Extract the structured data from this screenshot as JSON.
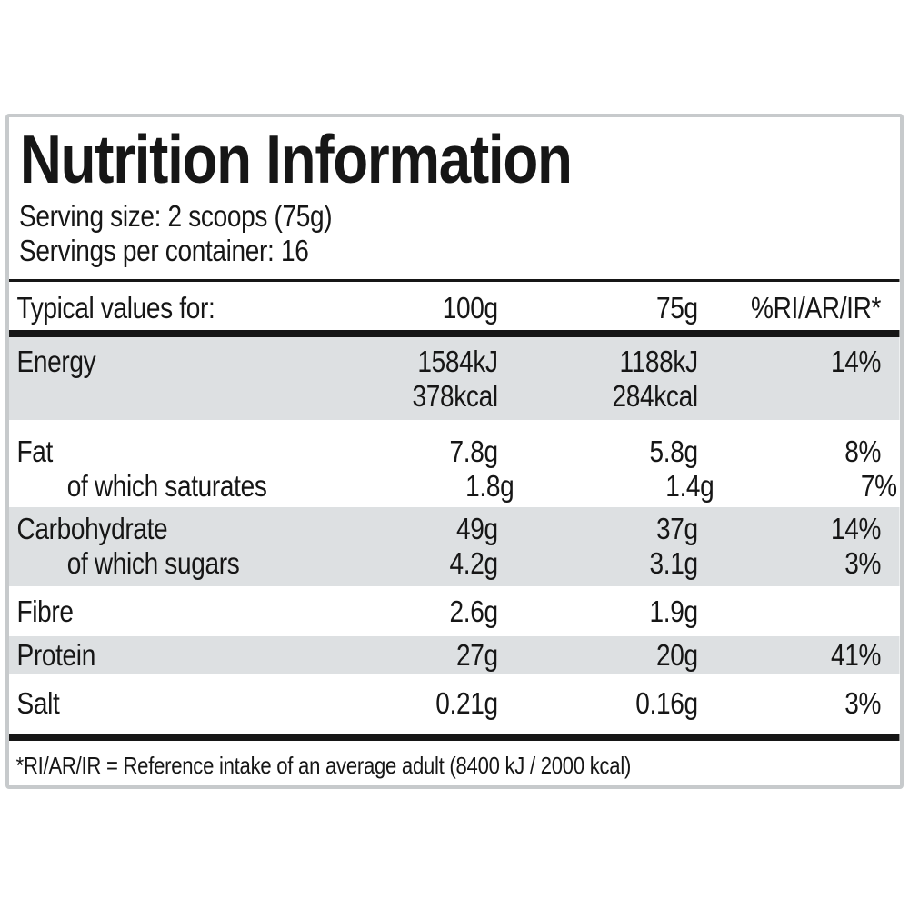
{
  "panel": {
    "title": "Nutrition Information",
    "serving_size": "Serving size: 2 scoops (75g)",
    "servings_per_container": "Servings per container: 16",
    "footnote": "*RI/AR/IR = Reference intake of an average adult (8400 kJ / 2000 kcal)"
  },
  "table": {
    "header": {
      "label": "Typical values for:",
      "col_100g": "100g",
      "col_75g": "75g",
      "col_ri": "%RI/AR/IR*"
    },
    "rows": [
      {
        "label": "Energy",
        "indent": false,
        "shaded": true,
        "per100": "1584kJ",
        "per100_2": "378kcal",
        "per75": "1188kJ",
        "per75_2": "284kcal",
        "ri": "14%"
      },
      {
        "label": "Fat",
        "indent": false,
        "shaded": false,
        "per100": "7.8g",
        "per75": "5.8g",
        "ri": "8%"
      },
      {
        "label": "of which saturates",
        "indent": true,
        "shaded": false,
        "per100": "1.8g",
        "per75": "1.4g",
        "ri": "7%"
      },
      {
        "label": "Carbohydrate",
        "indent": false,
        "shaded": true,
        "per100": "49g",
        "per75": "37g",
        "ri": "14%"
      },
      {
        "label": "of which sugars",
        "indent": true,
        "shaded": true,
        "per100": "4.2g",
        "per75": "3.1g",
        "ri": "3%"
      },
      {
        "label": "Fibre",
        "indent": false,
        "shaded": false,
        "per100": "2.6g",
        "per75": "1.9g",
        "ri": ""
      },
      {
        "label": "Protein",
        "indent": false,
        "shaded": true,
        "per100": "27g",
        "per75": "20g",
        "ri": "41%"
      },
      {
        "label": "Salt",
        "indent": false,
        "shaded": false,
        "per100": "0.21g",
        "per75": "0.16g",
        "ri": "3%"
      }
    ]
  },
  "colors": {
    "row_shade": "#dde0e2",
    "rule_black": "#161616",
    "panel_border": "#c7cacc",
    "text": "#161616",
    "background": "#ffffff"
  }
}
